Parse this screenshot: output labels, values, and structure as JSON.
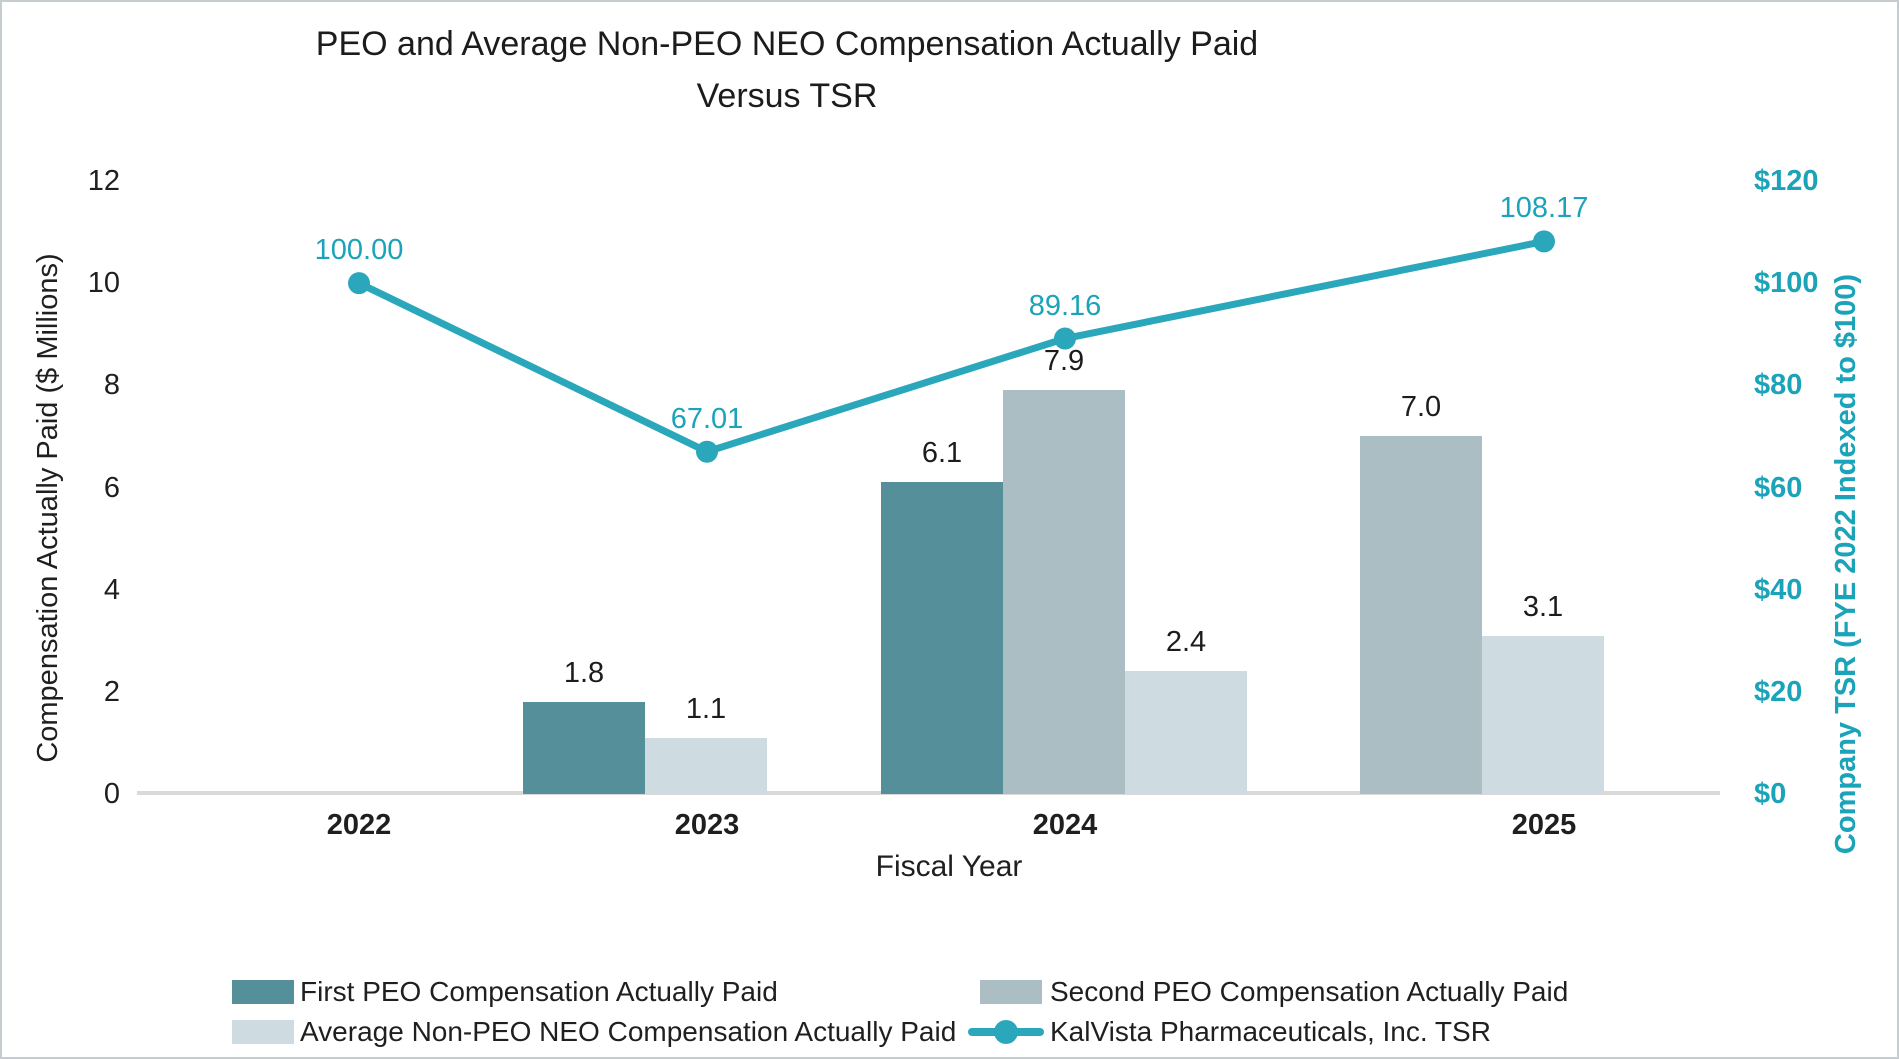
{
  "chart_data": {
    "type": "combo-bar-line",
    "title": "PEO and Average Non-PEO NEO Compensation Actually Paid Versus TSR",
    "title_lines": [
      "PEO and Average Non-PEO NEO Compensation Actually Paid",
      "Versus TSR"
    ],
    "categories": [
      "2022",
      "2023",
      "2024",
      "2025"
    ],
    "bar_series": [
      {
        "name": "First PEO Compensation Actually Paid",
        "color": "#55909A",
        "values": [
          null,
          1.8,
          6.1,
          null
        ],
        "labels": [
          "",
          "1.8",
          "6.1",
          ""
        ]
      },
      {
        "name": "Second PEO Compensation Actually Paid",
        "color": "#ABBEC3",
        "values": [
          null,
          null,
          7.9,
          7.0
        ],
        "labels": [
          "",
          "",
          "7.9",
          "7.0"
        ]
      },
      {
        "name": "Average Non-PEO NEO Compensation Actually Paid",
        "color": "#CEDBE0",
        "values": [
          null,
          1.1,
          2.4,
          3.1
        ],
        "labels": [
          "",
          "1.1",
          "2.4",
          "3.1"
        ]
      }
    ],
    "line_series": {
      "name": "KalVista Pharmaceuticals, Inc. TSR",
      "color": "#2BA7BC",
      "values": [
        100.0,
        67.01,
        89.16,
        108.17
      ],
      "labels": [
        "100.00",
        "67.01",
        "89.16",
        "108.17"
      ]
    },
    "left_axis": {
      "label": "Compensation Actually Paid ($ Millions)",
      "ticks": [
        "0",
        "2",
        "4",
        "6",
        "8",
        "10",
        "12"
      ],
      "range": [
        0,
        12
      ]
    },
    "right_axis": {
      "label": "Company TSR (FYE 2022 Indexed to $100)",
      "ticks": [
        "$0",
        "$20",
        "$40",
        "$60",
        "$80",
        "$100",
        "$120"
      ],
      "range": [
        0,
        120
      ],
      "color": "#1BA3B9"
    },
    "xlabel": "Fiscal Year",
    "grid": false,
    "legend_position": "bottom"
  }
}
